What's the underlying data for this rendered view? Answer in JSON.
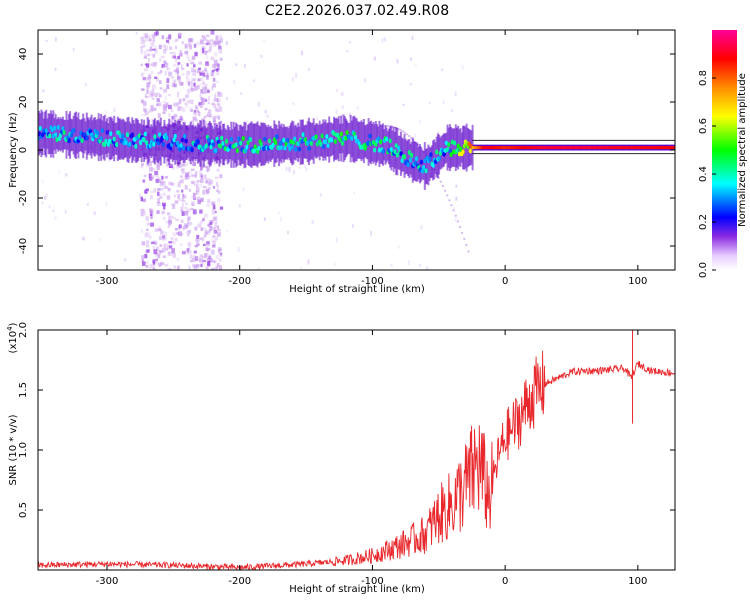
{
  "title": "C2E2.2026.037.02.49.R08",
  "chart_data": [
    {
      "type": "heatmap",
      "name": "spectrogram",
      "xlabel": "Height of straight line (km)",
      "ylabel": "Frequency (Hz)",
      "xlim": [
        -352,
        128
      ],
      "ylim": [
        -50,
        50
      ],
      "xticks": [
        -300,
        -200,
        -100,
        0,
        100
      ],
      "yticks": [
        -40,
        -20,
        0,
        20,
        40
      ],
      "colorbar": {
        "label": "Normalized spectral amplitude",
        "ticks": [
          0.0,
          0.2,
          0.4,
          0.6,
          0.8
        ],
        "range": [
          0,
          1
        ],
        "colors": [
          "#ffffff",
          "#d9b3ff",
          "#8a2be2",
          "#0000ff",
          "#00ffff",
          "#00ff00",
          "#ffff00",
          "#ff8c00",
          "#ff0000",
          "#ff00aa"
        ]
      },
      "signal_track": {
        "x": [
          -352,
          -320,
          -280,
          -240,
          -200,
          -160,
          -120,
          -90,
          -75,
          -60,
          -45,
          -30,
          -15,
          0,
          30,
          60,
          90,
          128
        ],
        "freq": [
          7,
          6,
          4,
          3,
          2,
          3,
          5,
          2,
          -3,
          -7,
          1,
          1,
          1,
          1,
          1,
          1,
          1,
          1
        ],
        "amplitude": [
          0.3,
          0.3,
          0.28,
          0.3,
          0.35,
          0.35,
          0.38,
          0.35,
          0.3,
          0.3,
          0.3,
          0.6,
          0.9,
          0.85,
          0.92,
          0.92,
          0.9,
          0.88
        ]
      },
      "interference_band": {
        "x_from": -275,
        "x_to": -215
      }
    },
    {
      "type": "line",
      "name": "snr",
      "xlabel": "Height of straight line (km)",
      "ylabel": "SNR (10 * v/v)",
      "scale_label": "(x10",
      "scale_exponent": "4",
      "scale_suffix": ")",
      "xlim": [
        -352,
        128
      ],
      "ylim": [
        0,
        2.0
      ],
      "xticks": [
        -300,
        -200,
        -100,
        0,
        100
      ],
      "yticks": [
        0.5,
        1.0,
        1.5,
        2.0
      ],
      "color": "#e8282c",
      "x": [
        -352,
        -300,
        -250,
        -200,
        -150,
        -120,
        -100,
        -80,
        -60,
        -50,
        -40,
        -30,
        -20,
        -12,
        -5,
        0,
        10,
        20,
        30,
        40,
        50,
        60,
        70,
        80,
        90,
        95,
        100,
        110,
        120,
        128
      ],
      "y": [
        0.04,
        0.05,
        0.04,
        0.02,
        0.05,
        0.08,
        0.12,
        0.2,
        0.3,
        0.45,
        0.55,
        0.7,
        0.9,
        0.6,
        0.95,
        1.1,
        1.25,
        1.45,
        1.55,
        1.6,
        1.65,
        1.66,
        1.66,
        1.67,
        1.68,
        1.6,
        1.72,
        1.66,
        1.65,
        1.64
      ]
    }
  ]
}
